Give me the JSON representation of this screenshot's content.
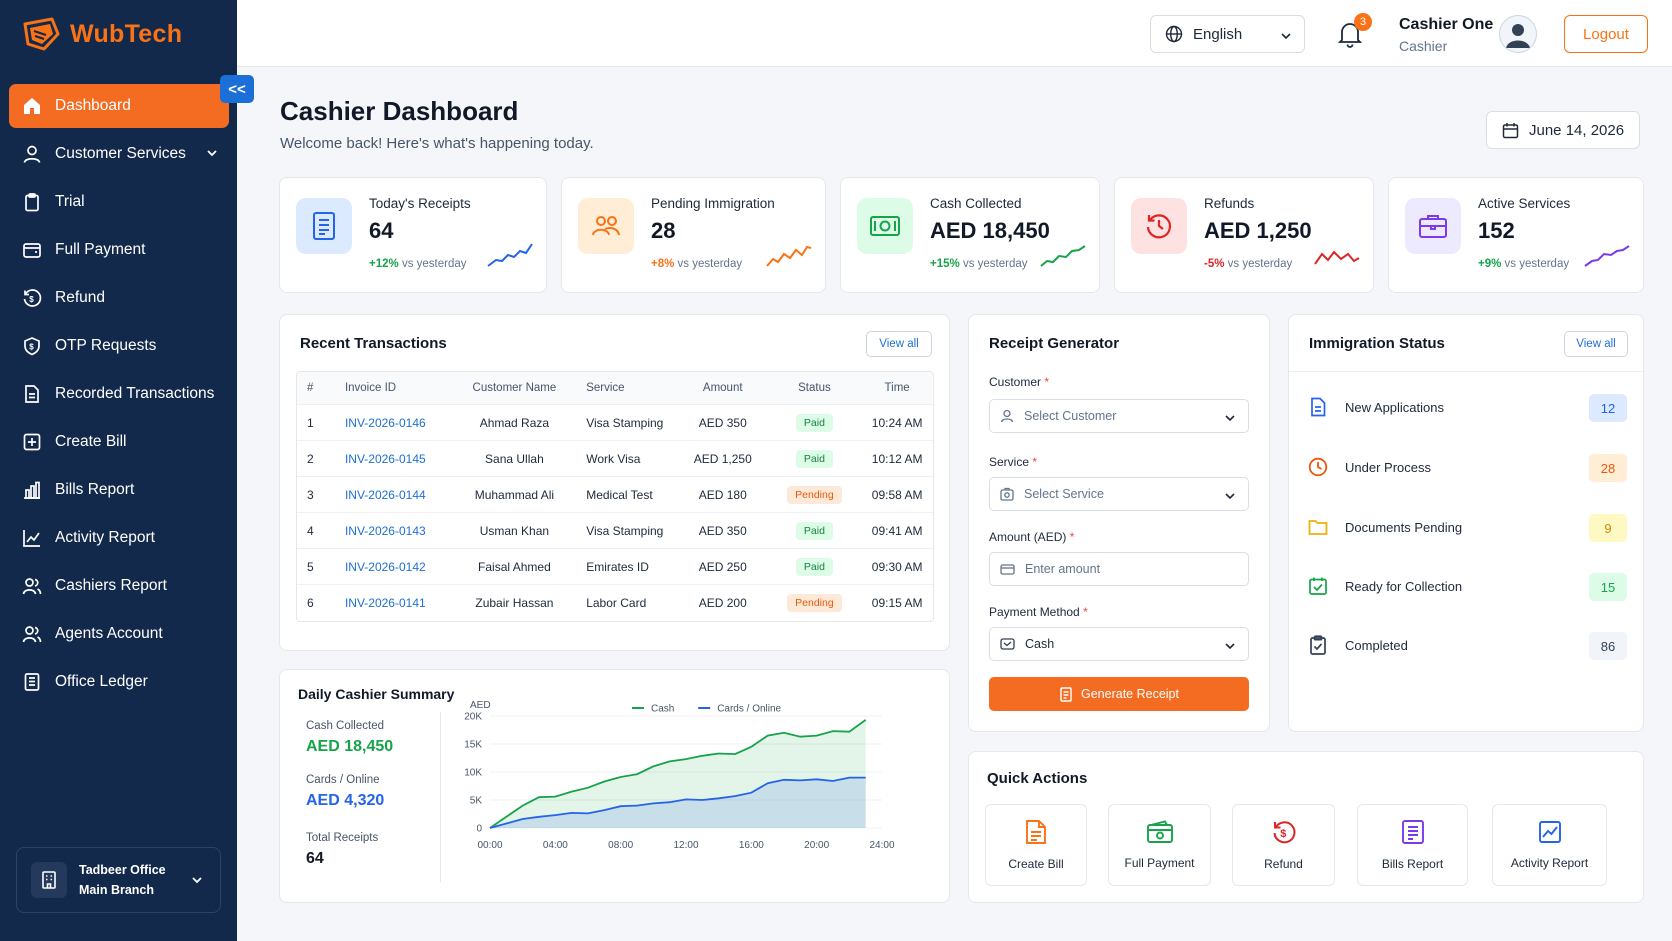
{
  "brand": {
    "name": "WubTech",
    "logo_color": "#f97316"
  },
  "sidebar": {
    "items": [
      {
        "label": "Dashboard",
        "icon": "home-icon",
        "active": true
      },
      {
        "label": "Customer Services",
        "icon": "user-icon",
        "has_children": true
      },
      {
        "label": "Trial",
        "icon": "clipboard-icon"
      },
      {
        "label": "Full Payment",
        "icon": "wallet-icon"
      },
      {
        "label": "Refund",
        "icon": "refund-icon"
      },
      {
        "label": "OTP Requests",
        "icon": "shield-icon"
      },
      {
        "label": "Recorded Transactions",
        "icon": "document-icon"
      },
      {
        "label": "Create Bill",
        "icon": "plus-square-icon"
      },
      {
        "label": "Bills Report",
        "icon": "bar-chart-icon"
      },
      {
        "label": "Activity Report",
        "icon": "line-chart-icon"
      },
      {
        "label": "Cashiers Report",
        "icon": "users-icon"
      },
      {
        "label": "Agents Account",
        "icon": "users-icon"
      },
      {
        "label": "Office Ledger",
        "icon": "ledger-icon"
      }
    ],
    "office": {
      "name": "Tadbeer Office",
      "branch": "Main Branch"
    },
    "collapse_label": "<<"
  },
  "topbar": {
    "language": "English",
    "notifications": "3",
    "user_name": "Cashier One",
    "user_role": "Cashier",
    "logout": "Logout"
  },
  "header": {
    "title": "Cashier Dashboard",
    "subtitle": "Welcome back! Here's what's happening today.",
    "date": "June 14, 2026"
  },
  "stats": [
    {
      "label": "Today's Receipts",
      "value": "64",
      "delta": "+12%",
      "delta_text": "vs yesterday",
      "color": "#2563eb",
      "trend": "up"
    },
    {
      "label": "Pending Immigration",
      "value": "28",
      "delta": "+8%",
      "delta_text": "vs yesterday",
      "color": "#f97316",
      "trend": "up"
    },
    {
      "label": "Cash Collected",
      "value": "AED 18,450",
      "delta": "+15%",
      "delta_text": "vs yesterday",
      "color": "#16a34a",
      "trend": "up"
    },
    {
      "label": "Refunds",
      "value": "AED 1,250",
      "delta": "-5%",
      "delta_text": "vs yesterday",
      "color": "#dc2626",
      "trend": "down"
    },
    {
      "label": "Active Services",
      "value": "152",
      "delta": "+9%",
      "delta_text": "vs yesterday",
      "color": "#7c3aed",
      "trend": "up"
    }
  ],
  "transactions": {
    "title": "Recent Transactions",
    "view_all": "View all",
    "columns": [
      "#",
      "Invoice ID",
      "Customer Name",
      "Service",
      "Amount",
      "Status",
      "Time"
    ],
    "rows": [
      {
        "n": "1",
        "invoice": "INV-2026-0146",
        "customer": "Ahmad Raza",
        "service": "Visa Stamping",
        "amount": "AED 350",
        "status": "Paid",
        "time": "10:24 AM"
      },
      {
        "n": "2",
        "invoice": "INV-2026-0145",
        "customer": "Sana Ullah",
        "service": "Work Visa",
        "amount": "AED 1,250",
        "status": "Paid",
        "time": "10:12 AM"
      },
      {
        "n": "3",
        "invoice": "INV-2026-0144",
        "customer": "Muhammad Ali",
        "service": "Medical Test",
        "amount": "AED 180",
        "status": "Pending",
        "time": "09:58 AM"
      },
      {
        "n": "4",
        "invoice": "INV-2026-0143",
        "customer": "Usman Khan",
        "service": "Visa Stamping",
        "amount": "AED 350",
        "status": "Paid",
        "time": "09:41 AM"
      },
      {
        "n": "5",
        "invoice": "INV-2026-0142",
        "customer": "Faisal Ahmed",
        "service": "Emirates ID",
        "amount": "AED 250",
        "status": "Paid",
        "time": "09:30 AM"
      },
      {
        "n": "6",
        "invoice": "INV-2026-0141",
        "customer": "Zubair Hassan",
        "service": "Labor Card",
        "amount": "AED 200",
        "status": "Pending",
        "time": "09:15 AM"
      }
    ]
  },
  "receipt": {
    "title": "Receipt Generator",
    "customer_label": "Customer",
    "customer_placeholder": "Select Customer",
    "service_label": "Service",
    "service_placeholder": "Select Service",
    "amount_label": "Amount (AED)",
    "amount_placeholder": "Enter amount",
    "payment_label": "Payment Method",
    "payment_value": "Cash",
    "required_mark": "*",
    "button": "Generate Receipt"
  },
  "immigration": {
    "title": "Immigration Status",
    "view_all": "View all",
    "items": [
      {
        "label": "New Applications",
        "count": "12",
        "color": "#2563eb",
        "bg": "#dbeafe"
      },
      {
        "label": "Under Process",
        "count": "28",
        "color": "#ea580c",
        "bg": "#ffedd5"
      },
      {
        "label": "Documents Pending",
        "count": "9",
        "color": "#ca8a04",
        "bg": "#fef9c3"
      },
      {
        "label": "Ready for Collection",
        "count": "15",
        "color": "#16a34a",
        "bg": "#dcfce7"
      },
      {
        "label": "Completed",
        "count": "86",
        "color": "#334155",
        "bg": "#f1f5f9"
      }
    ]
  },
  "summary": {
    "title": "Daily Cashier Summary",
    "cash_label": "Cash Collected",
    "cash_value": "AED 18,450",
    "cards_label": "Cards / Online",
    "cards_value": "AED 4,320",
    "receipts_label": "Total Receipts",
    "receipts_value": "64"
  },
  "chart_data": {
    "type": "area",
    "title": "",
    "ylabel": "AED",
    "xlabel": "",
    "x_ticks": [
      "00:00",
      "04:00",
      "08:00",
      "12:00",
      "16:00",
      "20:00",
      "24:00"
    ],
    "y_ticks": [
      "0",
      "5K",
      "10K",
      "15K",
      "20K"
    ],
    "ylim": [
      0,
      20000
    ],
    "xlim": [
      0,
      24
    ],
    "legend_position": "top-center",
    "series": [
      {
        "name": "Cash",
        "color": "#16a34a",
        "points": [
          [
            0,
            0
          ],
          [
            1,
            2000
          ],
          [
            2,
            4000
          ],
          [
            3,
            5500
          ],
          [
            4,
            5600
          ],
          [
            5,
            6500
          ],
          [
            6,
            7200
          ],
          [
            7,
            8300
          ],
          [
            8,
            9100
          ],
          [
            9,
            9600
          ],
          [
            10,
            11000
          ],
          [
            11,
            11900
          ],
          [
            12,
            12300
          ],
          [
            13,
            12900
          ],
          [
            14,
            13300
          ],
          [
            15,
            13200
          ],
          [
            16,
            14500
          ],
          [
            17,
            16500
          ],
          [
            18,
            17000
          ],
          [
            19,
            16300
          ],
          [
            20,
            16500
          ],
          [
            21,
            17300
          ],
          [
            22,
            17200
          ],
          [
            23,
            19300
          ]
        ]
      },
      {
        "name": "Cards / Online",
        "color": "#2563eb",
        "points": [
          [
            0,
            0
          ],
          [
            1,
            800
          ],
          [
            2,
            1600
          ],
          [
            3,
            2000
          ],
          [
            4,
            2300
          ],
          [
            5,
            2700
          ],
          [
            6,
            2600
          ],
          [
            7,
            3200
          ],
          [
            8,
            3900
          ],
          [
            9,
            4000
          ],
          [
            10,
            4400
          ],
          [
            11,
            4600
          ],
          [
            12,
            5100
          ],
          [
            13,
            5000
          ],
          [
            14,
            5300
          ],
          [
            15,
            5700
          ],
          [
            16,
            6300
          ],
          [
            17,
            8000
          ],
          [
            18,
            8600
          ],
          [
            19,
            8500
          ],
          [
            20,
            8700
          ],
          [
            21,
            8400
          ],
          [
            22,
            9000
          ],
          [
            23,
            9000
          ]
        ]
      }
    ]
  },
  "quick_actions": {
    "title": "Quick Actions",
    "items": [
      {
        "label": "Create Bill",
        "icon": "bill-icon",
        "color": "#f97316"
      },
      {
        "label": "Full Payment",
        "icon": "wallet-icon",
        "color": "#16a34a"
      },
      {
        "label": "Refund",
        "icon": "refund-icon",
        "color": "#dc2626"
      },
      {
        "label": "Bills Report",
        "icon": "report-icon",
        "color": "#7c3aed"
      },
      {
        "label": "Activity Report",
        "icon": "activity-icon",
        "color": "#2563eb"
      }
    ]
  }
}
